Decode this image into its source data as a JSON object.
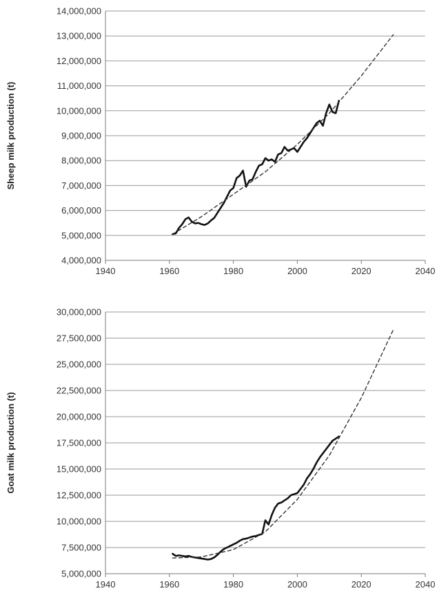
{
  "chart_data": [
    {
      "type": "line",
      "title": "",
      "xlabel": "",
      "ylabel": "Sheep milk production (t)",
      "xlim": [
        1940,
        2040
      ],
      "ylim": [
        4000000,
        14000000
      ],
      "grid": "horizontal",
      "x_ticks": [
        "1940",
        "1960",
        "1980",
        "2000",
        "2020",
        "2040"
      ],
      "y_ticks": [
        "4,000,000",
        "5,000,000",
        "6,000,000",
        "7,000,000",
        "8,000,000",
        "9,000,000",
        "10,000,000",
        "11,000,000",
        "12,000,000",
        "13,000,000",
        "14,000,000"
      ],
      "series": [
        {
          "style": "solid",
          "x": [
            1961,
            1962,
            1963,
            1964,
            1965,
            1966,
            1967,
            1968,
            1969,
            1970,
            1971,
            1972,
            1973,
            1974,
            1975,
            1976,
            1977,
            1978,
            1979,
            1980,
            1981,
            1982,
            1983,
            1984,
            1985,
            1986,
            1987,
            1988,
            1989,
            1990,
            1991,
            1992,
            1993,
            1994,
            1995,
            1996,
            1997,
            1998,
            1999,
            2000,
            2001,
            2002,
            2003,
            2004,
            2005,
            2006,
            2007,
            2008,
            2009,
            2010,
            2011,
            2012,
            2013
          ],
          "y": [
            5050000,
            5080000,
            5300000,
            5450000,
            5650000,
            5720000,
            5550000,
            5480000,
            5500000,
            5450000,
            5420000,
            5480000,
            5600000,
            5700000,
            5900000,
            6100000,
            6300000,
            6550000,
            6800000,
            6900000,
            7300000,
            7400000,
            7600000,
            6950000,
            7200000,
            7250000,
            7550000,
            7800000,
            7850000,
            8100000,
            8000000,
            8050000,
            7950000,
            8250000,
            8300000,
            8550000,
            8400000,
            8450000,
            8500000,
            8350000,
            8550000,
            8750000,
            8900000,
            9100000,
            9300000,
            9500000,
            9600000,
            9400000,
            9900000,
            10250000,
            9950000,
            9900000,
            10400000
          ]
        },
        {
          "style": "dashed",
          "x": [
            1961,
            1970,
            1980,
            1990,
            2000,
            2010,
            2020,
            2030
          ],
          "y": [
            5050000,
            5750000,
            6650000,
            7550000,
            8650000,
            9900000,
            11400000,
            13050000
          ]
        }
      ]
    },
    {
      "type": "line",
      "title": "",
      "xlabel": "",
      "ylabel": "Goat milk production (t)",
      "xlim": [
        1940,
        2040
      ],
      "ylim": [
        5000000,
        30000000
      ],
      "grid": "horizontal",
      "x_ticks": [
        "1940",
        "1960",
        "1980",
        "2000",
        "2020",
        "2040"
      ],
      "y_ticks": [
        "5,000,000",
        "7,500,000",
        "10,000,000",
        "12,500,000",
        "15,000,000",
        "17,500,000",
        "20,000,000",
        "22,500,000",
        "25,000,000",
        "27,500,000",
        "30,000,000"
      ],
      "series": [
        {
          "style": "solid",
          "x": [
            1961,
            1962,
            1963,
            1964,
            1965,
            1966,
            1967,
            1968,
            1969,
            1970,
            1971,
            1972,
            1973,
            1974,
            1975,
            1976,
            1977,
            1978,
            1979,
            1980,
            1981,
            1982,
            1983,
            1984,
            1985,
            1986,
            1987,
            1988,
            1989,
            1990,
            1991,
            1992,
            1993,
            1994,
            1995,
            1996,
            1997,
            1998,
            1999,
            2000,
            2001,
            2002,
            2003,
            2004,
            2005,
            2006,
            2007,
            2008,
            2009,
            2010,
            2011,
            2012,
            2013
          ],
          "y": [
            6900000,
            6700000,
            6750000,
            6700000,
            6650000,
            6700000,
            6600000,
            6550000,
            6500000,
            6450000,
            6400000,
            6350000,
            6400000,
            6550000,
            6800000,
            7100000,
            7350000,
            7500000,
            7650000,
            7800000,
            7950000,
            8150000,
            8300000,
            8350000,
            8450000,
            8550000,
            8600000,
            8700000,
            8800000,
            10100000,
            9700000,
            10600000,
            11300000,
            11700000,
            11800000,
            12000000,
            12200000,
            12500000,
            12600000,
            12700000,
            13100000,
            13500000,
            14100000,
            14500000,
            15000000,
            15600000,
            16100000,
            16500000,
            16900000,
            17300000,
            17700000,
            17900000,
            18100000
          ]
        },
        {
          "style": "dashed",
          "x": [
            1961,
            1970,
            1980,
            1990,
            2000,
            2010,
            2020,
            2030
          ],
          "y": [
            6500000,
            6600000,
            7300000,
            9000000,
            12100000,
            16300000,
            21800000,
            28300000
          ]
        }
      ]
    }
  ]
}
